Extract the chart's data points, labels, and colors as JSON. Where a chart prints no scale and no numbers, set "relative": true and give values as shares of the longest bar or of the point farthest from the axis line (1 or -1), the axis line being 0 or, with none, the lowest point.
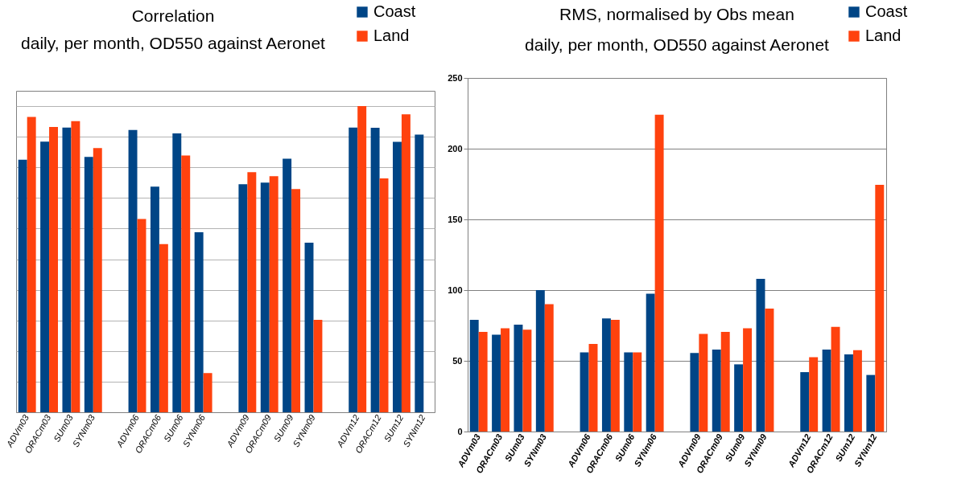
{
  "chart_data": [
    {
      "type": "bar",
      "title": "Correlation",
      "subtitle": "daily, per month, OD550 against Aeronet",
      "relative": true,
      "grid": true,
      "legend": "top right",
      "categories": [
        "ADVm03",
        "ORACm03",
        "SUm03",
        "SYNm03",
        null,
        "ADVm06",
        "ORACm06",
        "SUm06",
        "SYNm06",
        null,
        "ADVm09",
        "ORACm09",
        "SUm09",
        "SYNm09",
        null,
        "ADVm12",
        "ORACm12",
        "SUm12",
        "SYNm12"
      ],
      "series": [
        {
          "name": "Coast",
          "color": "#004586",
          "values": [
            0.825,
            0.884,
            0.93,
            0.834,
            null,
            0.922,
            0.737,
            0.911,
            0.588,
            null,
            0.745,
            0.75,
            0.828,
            0.554,
            null,
            0.93,
            0.929,
            0.883,
            0.907
          ]
        },
        {
          "name": "Land",
          "color": "#ff420e",
          "values": [
            0.965,
            0.932,
            0.951,
            0.863,
            null,
            0.631,
            0.549,
            0.839,
            0.128,
            null,
            0.784,
            0.771,
            0.729,
            0.302,
            null,
            1,
            0.764,
            0.973,
            null
          ]
        }
      ]
    },
    {
      "type": "bar",
      "title": "RMS, normalised by Obs mean",
      "subtitle": "daily, per month, OD550 against Aeronet",
      "grid": "y",
      "legend": "top right",
      "ylim": [
        0,
        250
      ],
      "yticks": [
        0,
        50,
        100,
        150,
        200,
        250
      ],
      "categories": [
        "ADVm03",
        "ORACm03",
        "SUm03",
        "SYNm03",
        null,
        "ADVm06",
        "ORACm06",
        "SUm06",
        "SYNm06",
        null,
        "ADVm09",
        "ORACm09",
        "SUm09",
        "SYNm09",
        null,
        "ADVm12",
        "ORACm12",
        "SUm12",
        "SYNm12"
      ],
      "series": [
        {
          "name": "Coast",
          "color": "#004586",
          "values": [
            79,
            68.5,
            75.5,
            100,
            null,
            56,
            80,
            56,
            97.5,
            null,
            55.5,
            58,
            47.5,
            108,
            null,
            42,
            58,
            54.5,
            40
          ]
        },
        {
          "name": "Land",
          "color": "#ff420e",
          "values": [
            70.5,
            73,
            72,
            90,
            null,
            62,
            79,
            56,
            224,
            null,
            69,
            70.5,
            73,
            87,
            null,
            52.5,
            74,
            57.5,
            174.5
          ]
        }
      ]
    }
  ]
}
